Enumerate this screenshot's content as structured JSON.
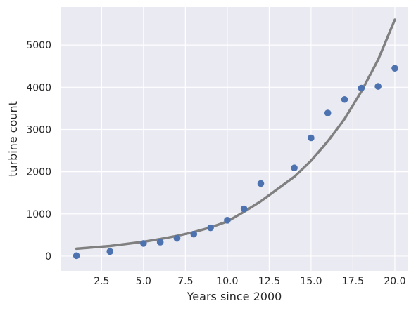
{
  "chart_data": {
    "type": "scatter",
    "title": "",
    "xlabel": "Years since 2000",
    "ylabel": "turbine count",
    "xlim": [
      0.05,
      20.8
    ],
    "ylim": [
      -350,
      5900
    ],
    "xticks": [
      2.5,
      5.0,
      7.5,
      10.0,
      12.5,
      15.0,
      17.5,
      20.0
    ],
    "xtick_labels": [
      "2.5",
      "5.0",
      "7.5",
      "10.0",
      "12.5",
      "15.0",
      "17.5",
      "20.0"
    ],
    "yticks": [
      0,
      1000,
      2000,
      3000,
      4000,
      5000
    ],
    "ytick_labels": [
      "0",
      "1000",
      "2000",
      "3000",
      "4000",
      "5000"
    ],
    "grid": true,
    "background": "#eaeaf2",
    "grid_color": "#ffffff",
    "series": [
      {
        "kind": "scatter",
        "color": "#4c72b0",
        "points": [
          {
            "x": 1,
            "y": 10
          },
          {
            "x": 3,
            "y": 110
          },
          {
            "x": 5,
            "y": 300
          },
          {
            "x": 6,
            "y": 330
          },
          {
            "x": 7,
            "y": 420
          },
          {
            "x": 8,
            "y": 520
          },
          {
            "x": 9,
            "y": 670
          },
          {
            "x": 10,
            "y": 850
          },
          {
            "x": 11,
            "y": 1120
          },
          {
            "x": 12,
            "y": 1720
          },
          {
            "x": 14,
            "y": 2090
          },
          {
            "x": 15,
            "y": 2800
          },
          {
            "x": 16,
            "y": 3390
          },
          {
            "x": 17,
            "y": 3710
          },
          {
            "x": 18,
            "y": 3980
          },
          {
            "x": 19,
            "y": 4020
          },
          {
            "x": 20,
            "y": 4450
          }
        ]
      },
      {
        "kind": "line",
        "color": "#808080",
        "points": [
          {
            "x": 1,
            "y": 175
          },
          {
            "x": 3,
            "y": 240
          },
          {
            "x": 5,
            "y": 340
          },
          {
            "x": 6,
            "y": 405
          },
          {
            "x": 7,
            "y": 480
          },
          {
            "x": 8,
            "y": 570
          },
          {
            "x": 9,
            "y": 680
          },
          {
            "x": 10,
            "y": 820
          },
          {
            "x": 11,
            "y": 1050
          },
          {
            "x": 12,
            "y": 1300
          },
          {
            "x": 14,
            "y": 1880
          },
          {
            "x": 15,
            "y": 2260
          },
          {
            "x": 16,
            "y": 2720
          },
          {
            "x": 17,
            "y": 3250
          },
          {
            "x": 18,
            "y": 3900
          },
          {
            "x": 19,
            "y": 4650
          },
          {
            "x": 20,
            "y": 5600
          }
        ]
      }
    ]
  }
}
